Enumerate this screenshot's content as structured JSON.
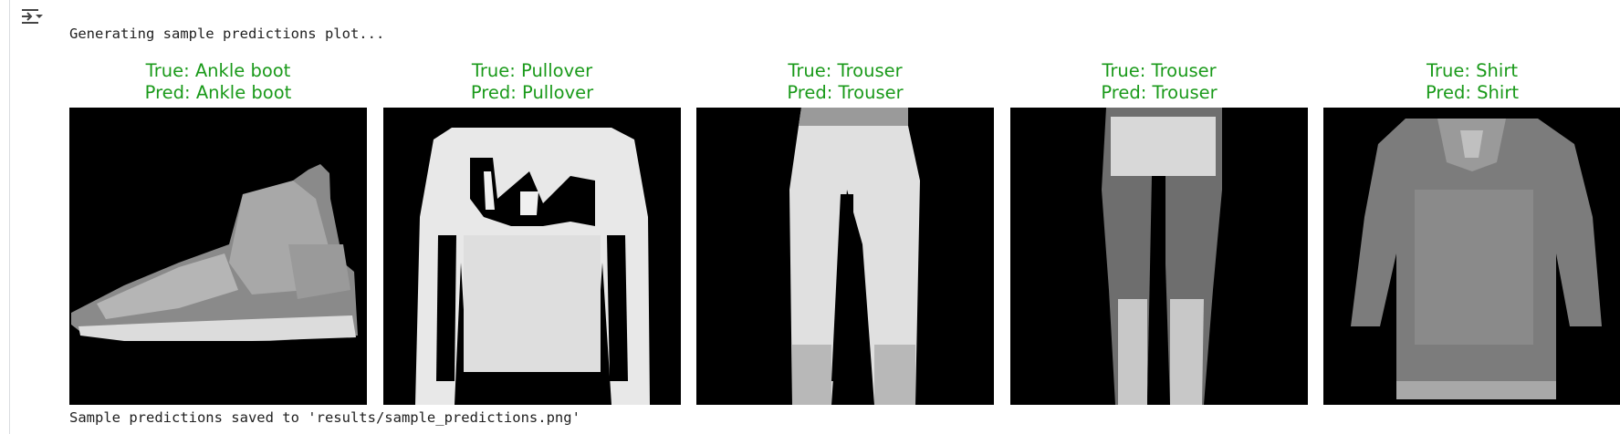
{
  "output": {
    "log_line_1": "Generating sample predictions plot...",
    "log_line_2": "Sample predictions saved to 'results/sample_predictions.png'"
  },
  "toggle_icon": "output-collapse-icon",
  "colors": {
    "caption_correct": "#1a9a1a",
    "image_background": "#000000"
  },
  "samples": [
    {
      "true_label": "True: Ankle boot",
      "pred_label": "Pred: Ankle boot",
      "item": "ankle-boot"
    },
    {
      "true_label": "True: Pullover",
      "pred_label": "Pred: Pullover",
      "item": "pullover"
    },
    {
      "true_label": "True: Trouser",
      "pred_label": "Pred: Trouser",
      "item": "trouser"
    },
    {
      "true_label": "True: Trouser",
      "pred_label": "Pred: Trouser",
      "item": "trouser"
    },
    {
      "true_label": "True: Shirt",
      "pred_label": "Pred: Shirt",
      "item": "shirt"
    }
  ]
}
